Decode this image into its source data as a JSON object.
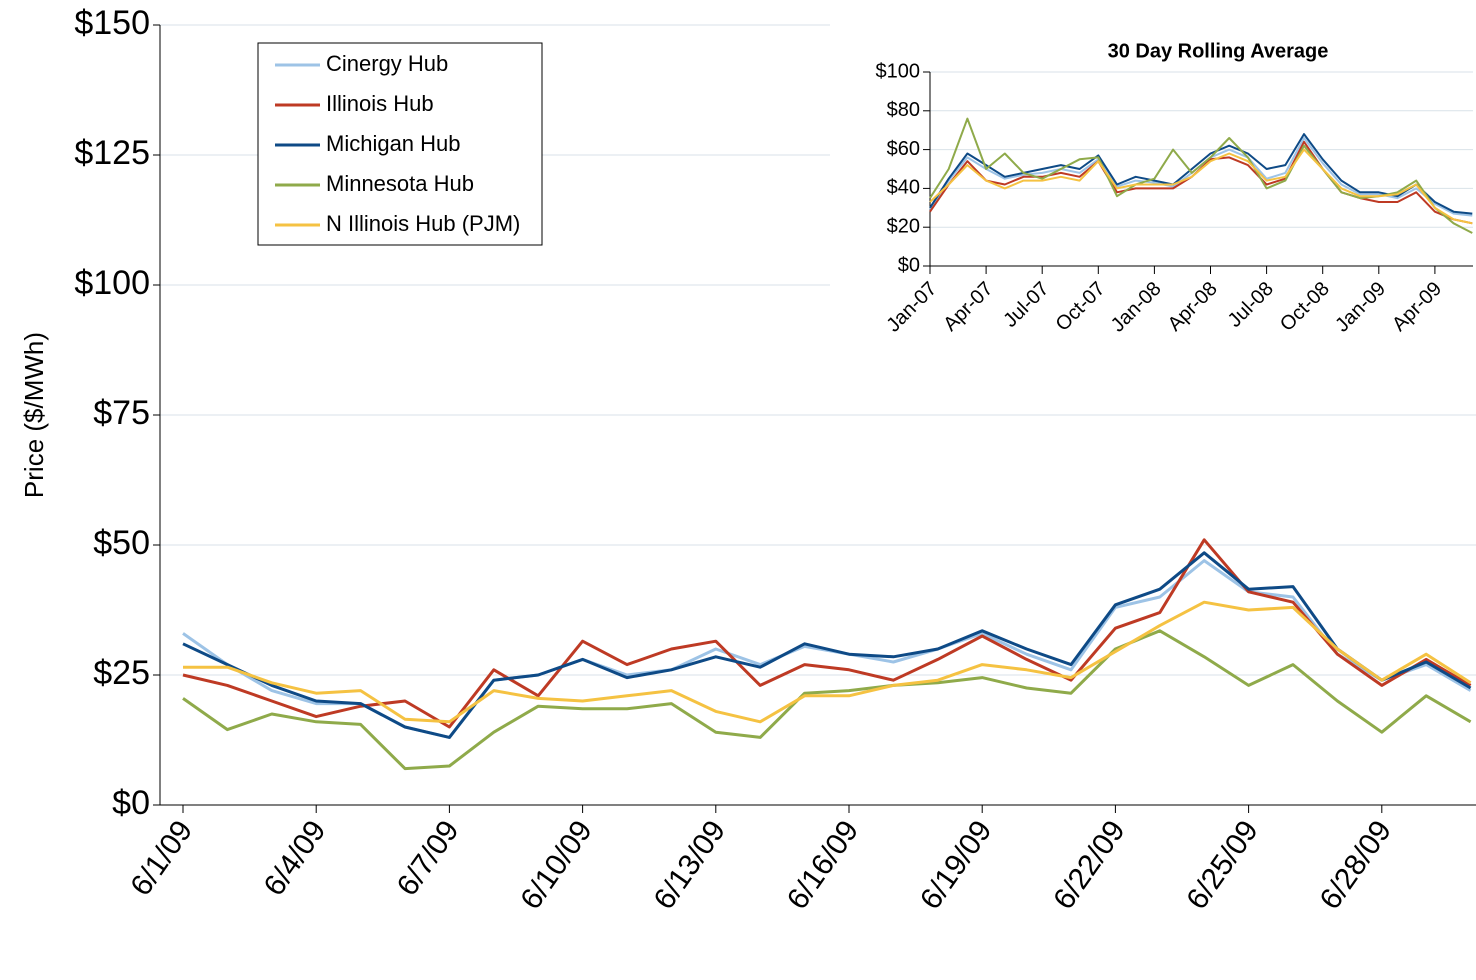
{
  "chart_data": [
    {
      "type": "line",
      "y_label": "Price ($/MWh)",
      "categories": [
        "6/1/09",
        null,
        null,
        "6/4/09",
        null,
        null,
        "6/7/09",
        null,
        null,
        "6/10/09",
        null,
        null,
        "6/13/09",
        null,
        null,
        "6/16/09",
        null,
        null,
        "6/19/09",
        null,
        null,
        "6/22/09",
        null,
        null,
        "6/25/09",
        null,
        null,
        "6/28/09",
        null,
        null
      ],
      "series": [
        {
          "name": "Cinergy Hub",
          "color": "#9dc3e6",
          "values": [
            33,
            27,
            22,
            19.5,
            19.5,
            15,
            13,
            24,
            25,
            28,
            25,
            26,
            30,
            27,
            30.5,
            29,
            27.5,
            30,
            33,
            29,
            26,
            38,
            40,
            47,
            41,
            40,
            29,
            24,
            27,
            22
          ]
        },
        {
          "name": "Illinois Hub",
          "color": "#be3a24",
          "values": [
            25,
            23,
            20,
            17,
            19,
            20,
            15,
            26,
            21,
            31.5,
            27,
            30,
            31.5,
            23,
            27,
            26,
            24,
            28,
            32.5,
            28,
            24,
            34,
            37,
            51,
            41,
            39,
            29,
            23,
            28,
            23
          ]
        },
        {
          "name": "Michigan Hub",
          "color": "#0e4a86",
          "values": [
            31,
            27,
            23,
            20,
            19.5,
            15,
            13,
            24,
            25,
            28,
            24.5,
            26,
            28.5,
            26.5,
            31,
            29,
            28.5,
            30,
            33.5,
            30,
            27,
            38.5,
            41.5,
            48.5,
            41.5,
            42,
            30,
            24,
            27.5,
            22.5
          ]
        },
        {
          "name": "Minnesota Hub",
          "color": "#8faa4a",
          "values": [
            20.5,
            14.5,
            17.5,
            16,
            15.5,
            7,
            7.5,
            14,
            19,
            18.5,
            18.5,
            19.5,
            14,
            13,
            21.5,
            22,
            23,
            23.5,
            24.5,
            22.5,
            21.5,
            30,
            33.5,
            28.5,
            23,
            27,
            20,
            14,
            21,
            16
          ]
        },
        {
          "name": "N Illinois Hub (PJM)",
          "color": "#f5c242",
          "values": [
            26.5,
            26.5,
            23.5,
            21.5,
            22,
            16.5,
            16,
            22,
            20.5,
            20,
            21,
            22,
            18,
            16,
            21,
            21,
            23,
            24,
            27,
            26,
            24.5,
            29.5,
            34.5,
            39,
            37.5,
            38,
            30,
            24,
            29,
            23.5
          ]
        }
      ],
      "ylim": [
        0,
        150
      ],
      "yticks": [
        {
          "value": 0,
          "label": "$0"
        },
        {
          "value": 25,
          "label": "$25"
        },
        {
          "value": 50,
          "label": "$50"
        },
        {
          "value": 75,
          "label": "$75"
        },
        {
          "value": 100,
          "label": "$100"
        },
        {
          "value": 125,
          "label": "$125"
        },
        {
          "value": 150,
          "label": "$150"
        }
      ],
      "grid": true,
      "legend": "upper-left"
    },
    {
      "type": "line",
      "title": "30 Day Rolling Average",
      "categories": [
        "Jan-07",
        null,
        null,
        "Apr-07",
        null,
        null,
        "Jul-07",
        null,
        null,
        "Oct-07",
        null,
        null,
        "Jan-08",
        null,
        null,
        "Apr-08",
        null,
        null,
        "Jul-08",
        null,
        null,
        "Oct-08",
        null,
        null,
        "Jan-09",
        null,
        null,
        "Apr-09",
        null,
        null
      ],
      "series": [
        {
          "color": "#9dc3e6",
          "values": [
            29,
            44,
            56,
            50,
            45,
            47,
            48,
            50,
            48,
            55,
            41,
            44,
            43,
            41,
            48,
            56,
            60,
            56,
            45,
            48,
            66,
            53,
            42,
            37,
            37,
            35,
            40,
            32,
            27,
            26
          ]
        },
        {
          "color": "#be3a24",
          "values": [
            28,
            42,
            54,
            44,
            42,
            46,
            46,
            48,
            46,
            54,
            38,
            40,
            40,
            40,
            46,
            55,
            56,
            52,
            42,
            45,
            64,
            50,
            38,
            35,
            33,
            33,
            38,
            28,
            24,
            22
          ]
        },
        {
          "color": "#0e4a86",
          "values": [
            30,
            45,
            58,
            52,
            46,
            48,
            50,
            52,
            50,
            57,
            42,
            46,
            44,
            42,
            50,
            58,
            62,
            58,
            50,
            52,
            68,
            55,
            44,
            38,
            38,
            36,
            42,
            33,
            28,
            27
          ]
        },
        {
          "color": "#8faa4a",
          "values": [
            35,
            50,
            76,
            50,
            58,
            48,
            45,
            50,
            55,
            56,
            36,
            42,
            45,
            60,
            48,
            56,
            66,
            56,
            40,
            44,
            62,
            50,
            38,
            35,
            36,
            38,
            44,
            30,
            22,
            17
          ]
        },
        {
          "color": "#f5c242",
          "values": [
            33,
            42,
            52,
            44,
            40,
            44,
            44,
            46,
            44,
            54,
            40,
            42,
            42,
            42,
            46,
            54,
            58,
            54,
            44,
            46,
            60,
            50,
            40,
            36,
            36,
            37,
            42,
            30,
            24,
            22
          ]
        }
      ],
      "ylim": [
        0,
        100
      ],
      "yticks": [
        {
          "value": 0,
          "label": "$0"
        },
        {
          "value": 20,
          "label": "$20"
        },
        {
          "value": 40,
          "label": "$40"
        },
        {
          "value": 60,
          "label": "$60"
        },
        {
          "value": 80,
          "label": "$80"
        },
        {
          "value": 100,
          "label": "$100"
        }
      ],
      "grid": true
    }
  ]
}
